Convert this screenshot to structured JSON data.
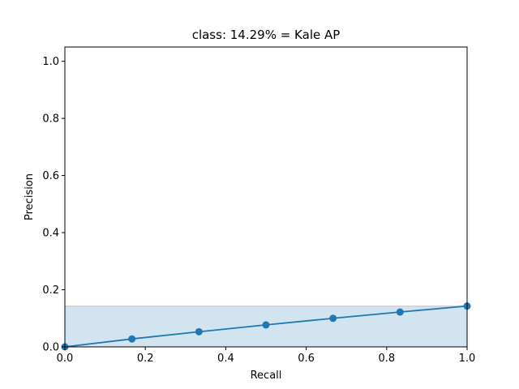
{
  "chart_data": {
    "type": "line",
    "title": "class: 14.29% = Kale AP",
    "xlabel": "Recall",
    "ylabel": "Precision",
    "xlim": [
      0.0,
      1.0
    ],
    "ylim": [
      0.0,
      1.05
    ],
    "xticks": [
      "0.0",
      "0.2",
      "0.4",
      "0.6",
      "0.8",
      "1.0"
    ],
    "yticks": [
      "0.0",
      "0.2",
      "0.4",
      "0.6",
      "0.8",
      "1.0"
    ],
    "grid": false,
    "series": [
      {
        "x": [
          0.0,
          0.1667,
          0.3333,
          0.5,
          0.6667,
          0.8333,
          1.0
        ],
        "y": [
          0.0,
          0.0278,
          0.0529,
          0.0769,
          0.1,
          0.122,
          0.1429
        ],
        "color": "#1f77b4",
        "markers": true
      }
    ],
    "shaded_area": {
      "x": [
        0.0,
        1.0
      ],
      "y": 0.1429,
      "color": "#1f77b4",
      "alpha": 0.2
    },
    "reference_line": {
      "y": 0.1429,
      "color": "#d62728",
      "alpha": 0.2
    }
  }
}
